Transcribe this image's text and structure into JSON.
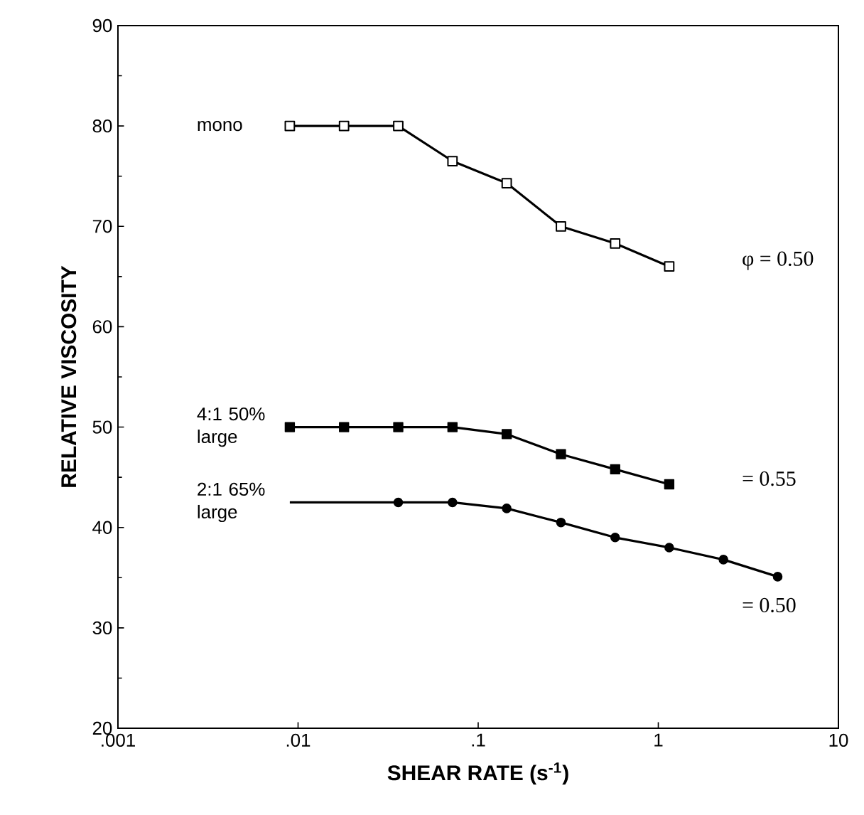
{
  "chart_data": {
    "type": "line",
    "xlabel": "SHEAR RATE (s$^{-1}$)",
    "ylabel": "RELATIVE VISCOSITY",
    "log": "x",
    "xlim": [
      0.001,
      10
    ],
    "ylim": [
      20,
      90
    ],
    "xticks": [
      {
        "value": 0.001,
        "label": ".001"
      },
      {
        "value": 0.01,
        "label": ".01"
      },
      {
        "value": 0.1,
        "label": ".1"
      },
      {
        "value": 1,
        "label": "1"
      },
      {
        "value": 10,
        "label": "10"
      }
    ],
    "yticks": [
      20,
      30,
      40,
      50,
      60,
      70,
      80,
      90
    ],
    "grid": false,
    "line_style": "solid",
    "series": [
      {
        "name": "mono",
        "color": "#000000",
        "colors": [
          "#ffffff",
          "#ffffff",
          "#ffffff",
          "#ffffff",
          "#ffffff",
          "#ffffff",
          "#ffffff",
          "#ffffff"
        ],
        "marker": "square",
        "x": [
          0.009,
          0.018,
          0.036,
          0.072,
          0.144,
          0.288,
          0.576,
          1.15
        ],
        "values": [
          80,
          80,
          80,
          76.5,
          74.3,
          70,
          68.3,
          66
        ]
      },
      {
        "name": "4:1 50% large",
        "color": "#000000",
        "marker": "square",
        "x": [
          0.009,
          0.018,
          0.036,
          0.072,
          0.144,
          0.288,
          0.576,
          1.15
        ],
        "values": [
          50,
          50,
          50,
          50,
          49.3,
          47.3,
          45.8,
          44.3
        ]
      },
      {
        "color": "#000000",
        "marker": "circle",
        "x": [
          0.036,
          0.072,
          0.144,
          0.288,
          0.576,
          1.15,
          2.3,
          4.6
        ],
        "values": [
          42.5,
          42.5,
          41.9,
          40.5,
          39,
          38,
          36.8,
          35.1
        ]
      },
      {
        "name": "2:1 65% large",
        "color": "#000000",
        "marker": "none",
        "x": [
          0.009,
          0.036
        ],
        "values": [
          42.5,
          42.5
        ]
      }
    ],
    "annotations": [
      "φ = 0.50",
      "= 0.55",
      "= 0.50"
    ]
  }
}
